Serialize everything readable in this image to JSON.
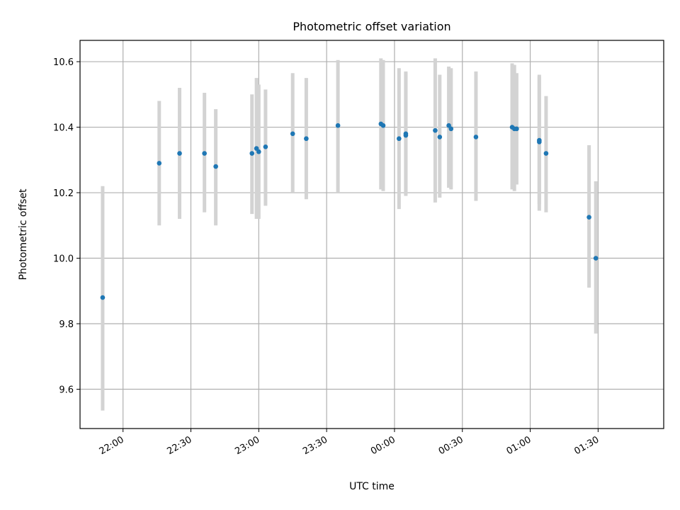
{
  "chart_data": {
    "type": "scatter",
    "title": "Photometric offset variation",
    "xlabel": "UTC time",
    "ylabel": "Photometric offset",
    "x_ticks": [
      "22:00",
      "22:30",
      "23:00",
      "23:30",
      "00:00",
      "00:30",
      "01:00",
      "01:30"
    ],
    "y_ticks": [
      "9.6",
      "9.8",
      "10.0",
      "10.2",
      "10.4",
      "10.6"
    ],
    "xlim": [
      "21:41",
      "01:59"
    ],
    "ylim": [
      9.48,
      10.665
    ],
    "grid": true,
    "colors": {
      "point": "#1f77b4",
      "errorbar": "#d3d3d3",
      "grid": "#b0b0b0"
    },
    "points": [
      {
        "x": "21:51",
        "y": 9.88,
        "ymin": 9.535,
        "ymax": 10.22
      },
      {
        "x": "22:16",
        "y": 10.29,
        "ymin": 10.1,
        "ymax": 10.48
      },
      {
        "x": "22:25",
        "y": 10.32,
        "ymin": 10.12,
        "ymax": 10.52
      },
      {
        "x": "22:36",
        "y": 10.32,
        "ymin": 10.14,
        "ymax": 10.505
      },
      {
        "x": "22:41",
        "y": 10.28,
        "ymin": 10.1,
        "ymax": 10.455
      },
      {
        "x": "22:57",
        "y": 10.32,
        "ymin": 10.135,
        "ymax": 10.5
      },
      {
        "x": "22:59",
        "y": 10.335,
        "ymin": 10.12,
        "ymax": 10.55
      },
      {
        "x": "23:00",
        "y": 10.325,
        "ymin": 10.12,
        "ymax": 10.53
      },
      {
        "x": "23:03",
        "y": 10.34,
        "ymin": 10.16,
        "ymax": 10.515
      },
      {
        "x": "23:15",
        "y": 10.38,
        "ymin": 10.2,
        "ymax": 10.565
      },
      {
        "x": "23:21",
        "y": 10.365,
        "ymin": 10.18,
        "ymax": 10.55
      },
      {
        "x": "23:35",
        "y": 10.405,
        "ymin": 10.2,
        "ymax": 10.605
      },
      {
        "x": "23:54",
        "y": 10.41,
        "ymin": 10.21,
        "ymax": 10.61
      },
      {
        "x": "23:55",
        "y": 10.405,
        "ymin": 10.205,
        "ymax": 10.605
      },
      {
        "x": "00:02",
        "y": 10.365,
        "ymin": 10.15,
        "ymax": 10.58
      },
      {
        "x": "00:05",
        "y": 10.38,
        "ymin": 10.195,
        "ymax": 10.57
      },
      {
        "x": "00:05",
        "y": 10.375,
        "ymin": 10.19,
        "ymax": 10.565
      },
      {
        "x": "00:18",
        "y": 10.39,
        "ymin": 10.17,
        "ymax": 10.61
      },
      {
        "x": "00:20",
        "y": 10.37,
        "ymin": 10.185,
        "ymax": 10.56
      },
      {
        "x": "00:24",
        "y": 10.405,
        "ymin": 10.215,
        "ymax": 10.585
      },
      {
        "x": "00:25",
        "y": 10.395,
        "ymin": 10.21,
        "ymax": 10.58
      },
      {
        "x": "00:36",
        "y": 10.37,
        "ymin": 10.175,
        "ymax": 10.57
      },
      {
        "x": "00:52",
        "y": 10.4,
        "ymin": 10.21,
        "ymax": 10.595
      },
      {
        "x": "00:53",
        "y": 10.395,
        "ymin": 10.205,
        "ymax": 10.59
      },
      {
        "x": "00:54",
        "y": 10.395,
        "ymin": 10.225,
        "ymax": 10.565
      },
      {
        "x": "01:04",
        "y": 10.355,
        "ymin": 10.145,
        "ymax": 10.56
      },
      {
        "x": "01:04",
        "y": 10.36,
        "ymin": 10.165,
        "ymax": 10.555
      },
      {
        "x": "01:07",
        "y": 10.32,
        "ymin": 10.14,
        "ymax": 10.495
      },
      {
        "x": "01:26",
        "y": 10.125,
        "ymin": 9.91,
        "ymax": 10.345
      },
      {
        "x": "01:29",
        "y": 10.0,
        "ymin": 9.77,
        "ymax": 10.235
      }
    ]
  }
}
